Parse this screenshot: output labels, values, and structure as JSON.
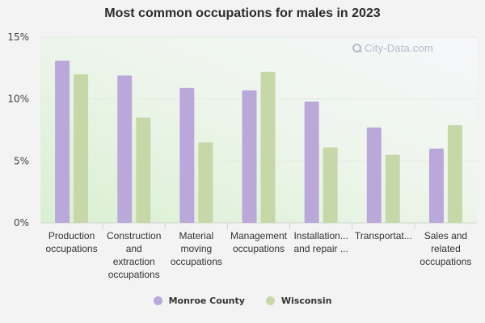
{
  "watermark": "City-Data.com",
  "colors": {
    "monroe": "#bba8da",
    "wisconsin": "#c6d8a8"
  },
  "chart_data": {
    "type": "bar",
    "title": "Most common occupations for males in 2023",
    "xlabel": "",
    "ylabel": "",
    "ylim": [
      0,
      15
    ],
    "yticks": [
      0,
      5,
      10,
      15
    ],
    "ytick_labels": [
      "0%",
      "5%",
      "10%",
      "15%"
    ],
    "grid": true,
    "legend_position": "bottom-center",
    "categories": [
      [
        "Production",
        "occupations"
      ],
      [
        "Construction",
        "and",
        "extraction",
        "occupations"
      ],
      [
        "Material",
        "moving",
        "occupations"
      ],
      [
        "Management",
        "occupations"
      ],
      [
        "Installation...",
        "and repair ..."
      ],
      [
        "Transportat..."
      ],
      [
        "Sales and",
        "related",
        "occupations"
      ]
    ],
    "series": [
      {
        "name": "Monroe County",
        "values": [
          13.1,
          11.9,
          10.9,
          10.7,
          9.8,
          7.7,
          6.0
        ]
      },
      {
        "name": "Wisconsin",
        "values": [
          12.0,
          8.5,
          6.5,
          12.2,
          6.1,
          5.5,
          7.9
        ]
      }
    ]
  }
}
